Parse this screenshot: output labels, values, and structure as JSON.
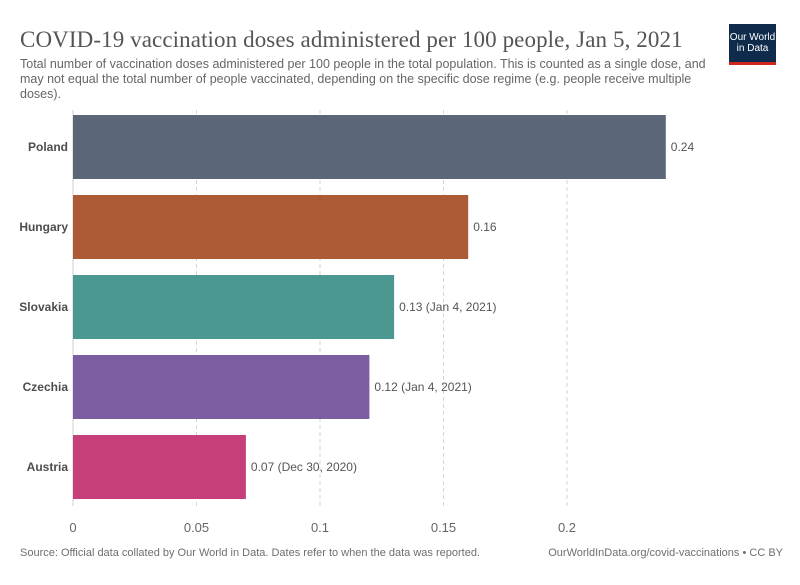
{
  "header": {
    "title": "COVID-19 vaccination doses administered per 100 people, Jan 5, 2021",
    "subtitle": "Total number of vaccination doses administered per 100 people in the total population. This is counted as a single dose, and may not equal the total number of people vaccinated, depending on the specific dose regime (e.g. people receive multiple doses)."
  },
  "logo": {
    "line1": "Our World",
    "line2": "in Data",
    "bg_color": "#0f2b4b",
    "accent_color": "#ce261e"
  },
  "footer": {
    "source": "Source: Official data collated by Our World in Data. Dates refer to when the data was reported.",
    "credit": "OurWorldInData.org/covid-vaccinations • CC BY"
  },
  "chart_data": {
    "type": "bar",
    "orientation": "horizontal",
    "categories": [
      "Poland",
      "Hungary",
      "Slovakia",
      "Czechia",
      "Austria"
    ],
    "values": [
      0.24,
      0.16,
      0.13,
      0.12,
      0.07
    ],
    "value_labels": [
      "0.24",
      "0.16",
      "0.13 (Jan 4, 2021)",
      "0.12 (Jan 4, 2021)",
      "0.07 (Dec 30, 2020)"
    ],
    "colors": [
      "#5b6778",
      "#ad5a36",
      "#4a9890",
      "#7b5ea1",
      "#c63f78"
    ],
    "xlim": [
      0,
      0.24
    ],
    "xticks": [
      0,
      0.05,
      0.1,
      0.15,
      0.2
    ],
    "xtick_labels": [
      "0",
      "0.05",
      "0.1",
      "0.15",
      "0.2"
    ],
    "grid": "vertical dashed"
  }
}
